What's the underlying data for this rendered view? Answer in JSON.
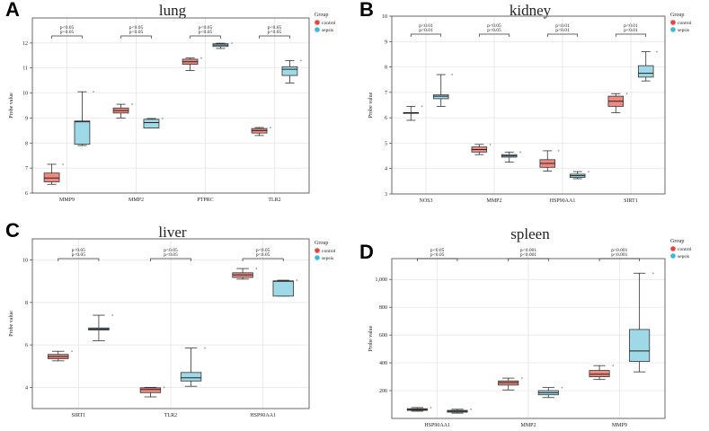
{
  "colors": {
    "control": "#f08a80",
    "control_dot": "#e8453a",
    "sepsis": "#9fd8e6",
    "sepsis_dot": "#3ab9d8",
    "grid": "#e3e3e3",
    "axis": "#444444"
  },
  "legend_common": {
    "title": "Group",
    "items": [
      "control",
      "sepsis"
    ]
  },
  "chart_data": [
    {
      "type": "box",
      "panel": "A",
      "title": "lung",
      "ylabel": "Probe value",
      "ylim": [
        6,
        13
      ],
      "yticks": [
        6,
        7,
        8,
        9,
        10,
        11,
        12
      ],
      "ytick_labels": [
        "6",
        "7",
        "8",
        "9",
        "10",
        "11",
        "12"
      ],
      "categories": [
        "MMP9",
        "MMP2",
        "PTPRC",
        "TLR2"
      ],
      "annotations": [
        "p<0.05",
        "p<0.05",
        "p<0.05",
        "p<0.05"
      ],
      "annotations_inner": [
        "p<0.05",
        "p<0.05",
        "p<0.05",
        "p<0.05"
      ],
      "series": [
        {
          "name": "control",
          "boxes": [
            {
              "min": 6.35,
              "q1": 6.45,
              "median": 6.6,
              "q3": 6.8,
              "max": 7.15
            },
            {
              "min": 9.0,
              "q1": 9.2,
              "median": 9.3,
              "q3": 9.4,
              "max": 9.55
            },
            {
              "min": 10.9,
              "q1": 11.15,
              "median": 11.25,
              "q3": 11.35,
              "max": 11.4
            },
            {
              "min": 8.3,
              "q1": 8.4,
              "median": 8.5,
              "q3": 8.58,
              "max": 8.62
            }
          ]
        },
        {
          "name": "sepsis",
          "boxes": [
            {
              "min": 7.9,
              "q1": 7.95,
              "median": 8.85,
              "q3": 8.88,
              "max": 10.05
            },
            {
              "min": 8.6,
              "q1": 8.6,
              "median": 8.82,
              "q3": 8.95,
              "max": 8.98
            },
            {
              "min": 11.78,
              "q1": 11.86,
              "median": 11.92,
              "q3": 11.97,
              "max": 11.99
            },
            {
              "min": 10.4,
              "q1": 10.7,
              "median": 10.95,
              "q3": 11.05,
              "max": 11.3
            }
          ]
        }
      ]
    },
    {
      "type": "box",
      "panel": "B",
      "title": "kidney",
      "ylabel": "Probe value",
      "ylim": [
        3,
        10
      ],
      "yticks": [
        3,
        4,
        5,
        6,
        7,
        8,
        9,
        10
      ],
      "ytick_labels": [
        "3",
        "4",
        "5",
        "6",
        "7",
        "8",
        "9",
        "10"
      ],
      "categories": [
        "NOS3",
        "MMP2",
        "HSP90AA1",
        "SIRT1"
      ],
      "annotations": [
        "p<0.01",
        "p<0.05",
        "p<0.01",
        "p<0.01"
      ],
      "annotations_inner": [
        "p<0.01",
        "p<0.05",
        "p<0.01",
        "p<0.01"
      ],
      "series": [
        {
          "name": "control",
          "boxes": [
            {
              "min": 5.9,
              "q1": 6.2,
              "median": 6.2,
              "q3": 6.2,
              "max": 6.45
            },
            {
              "min": 4.55,
              "q1": 4.65,
              "median": 4.75,
              "q3": 4.85,
              "max": 4.95
            },
            {
              "min": 3.9,
              "q1": 4.05,
              "median": 4.2,
              "q3": 4.35,
              "max": 4.7
            },
            {
              "min": 6.2,
              "q1": 6.45,
              "median": 6.65,
              "q3": 6.85,
              "max": 6.95
            }
          ]
        },
        {
          "name": "sepsis",
          "boxes": [
            {
              "min": 6.45,
              "q1": 6.75,
              "median": 6.85,
              "q3": 6.9,
              "max": 7.7
            },
            {
              "min": 4.25,
              "q1": 4.45,
              "median": 4.5,
              "q3": 4.55,
              "max": 4.65
            },
            {
              "min": 3.6,
              "q1": 3.65,
              "median": 3.72,
              "q3": 3.78,
              "max": 3.88
            },
            {
              "min": 7.45,
              "q1": 7.6,
              "median": 7.75,
              "q3": 8.05,
              "max": 8.6
            }
          ]
        }
      ]
    },
    {
      "type": "box",
      "panel": "C",
      "title": "liver",
      "ylabel": "Probe value",
      "ylim": [
        3,
        11
      ],
      "yticks": [
        4,
        6,
        8,
        10
      ],
      "ytick_labels": [
        "4",
        "6",
        "8",
        "10"
      ],
      "categories": [
        "SIRT1",
        "TLR2",
        "HSP90AA1"
      ],
      "annotations": [
        "p<0.05",
        "p<0.05",
        "p<0.05"
      ],
      "annotations_inner": [
        "p<0.05",
        "p<0.05",
        "p<0.05"
      ],
      "series": [
        {
          "name": "control",
          "boxes": [
            {
              "min": 5.25,
              "q1": 5.35,
              "median": 5.45,
              "q3": 5.55,
              "max": 5.7
            },
            {
              "min": 3.55,
              "q1": 3.75,
              "median": 3.9,
              "q3": 3.98,
              "max": 4.0
            },
            {
              "min": 9.1,
              "q1": 9.18,
              "median": 9.3,
              "q3": 9.4,
              "max": 9.6
            }
          ]
        },
        {
          "name": "sepsis",
          "boxes": [
            {
              "min": 6.2,
              "q1": 6.7,
              "median": 6.75,
              "q3": 6.8,
              "max": 7.4
            },
            {
              "min": 4.05,
              "q1": 4.3,
              "median": 4.45,
              "q3": 4.7,
              "max": 5.85
            },
            {
              "min": 8.3,
              "q1": 8.3,
              "median": 9.0,
              "q3": 9.02,
              "max": 9.05
            }
          ]
        }
      ]
    },
    {
      "type": "box",
      "panel": "D",
      "title": "spleen",
      "ylabel": "Probe value",
      "ylim": [
        0,
        1150
      ],
      "yticks": [
        200,
        400,
        600,
        800,
        1000
      ],
      "ytick_labels": [
        "200",
        "400",
        "600",
        "800",
        "1,000"
      ],
      "categories": [
        "HSP90AA1",
        "MMP2",
        "MMP9"
      ],
      "annotations": [
        "p<0.05",
        "p<0.001",
        "p<0.001"
      ],
      "annotations_inner": [
        "p<0.05",
        "p<0.001",
        "p<0.001"
      ],
      "series": [
        {
          "name": "control",
          "boxes": [
            {
              "min": 52,
              "q1": 58,
              "median": 64,
              "q3": 70,
              "max": 78
            },
            {
              "min": 205,
              "q1": 240,
              "median": 258,
              "q3": 270,
              "max": 290
            },
            {
              "min": 280,
              "q1": 300,
              "median": 318,
              "q3": 345,
              "max": 380
            }
          ]
        },
        {
          "name": "sepsis",
          "boxes": [
            {
              "min": 38,
              "q1": 45,
              "median": 52,
              "q3": 58,
              "max": 66
            },
            {
              "min": 150,
              "q1": 170,
              "median": 185,
              "q3": 200,
              "max": 222
            },
            {
              "min": 335,
              "q1": 410,
              "median": 485,
              "q3": 640,
              "max": 1045
            }
          ]
        }
      ]
    }
  ]
}
